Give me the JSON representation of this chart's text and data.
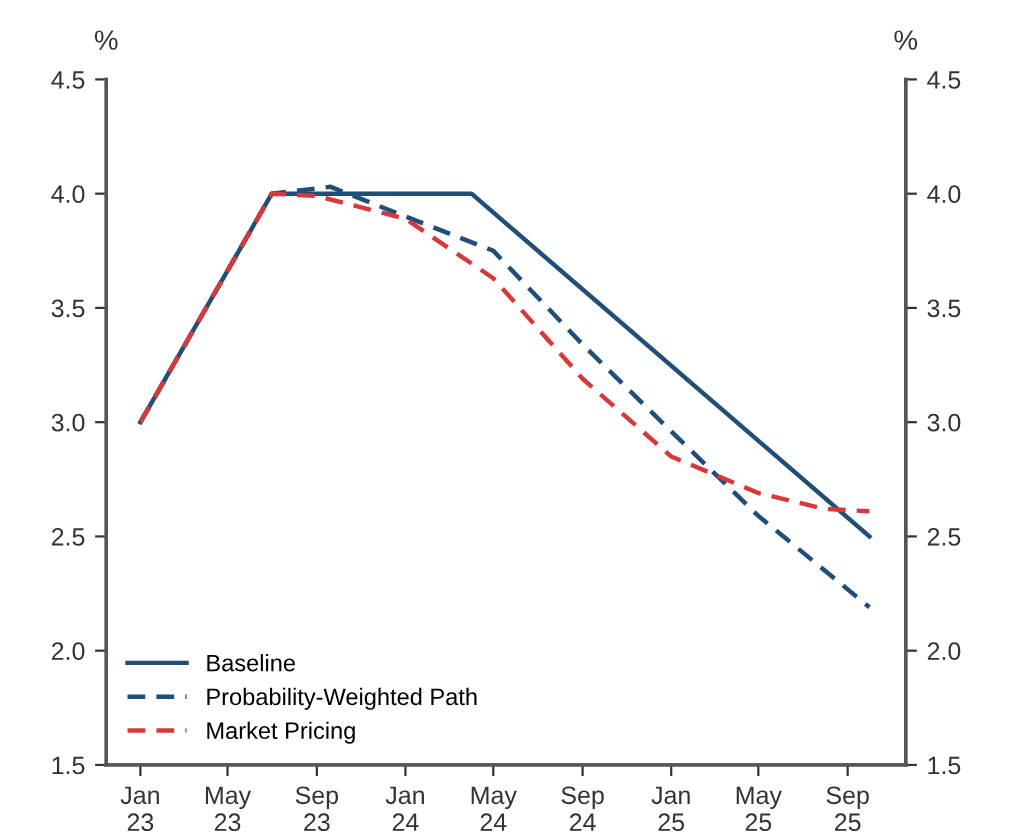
{
  "chart_data": {
    "type": "line",
    "ylabel": "%",
    "y2label": "%",
    "series": [
      {
        "name": "Baseline",
        "color": "#1f4e79",
        "line_style": "solid",
        "x": [
          "2023-01",
          "2023-07",
          "2024-04",
          "2025-10"
        ],
        "values": [
          3.0,
          4.0,
          4.0,
          2.5
        ]
      },
      {
        "name": "Probability-Weighted Path",
        "color": "#1f4e79",
        "line_style": "dashed",
        "x": [
          "2023-01",
          "2023-07",
          "2023-09-20",
          "2024-01",
          "2024-05",
          "2024-09",
          "2025-01",
          "2025-05",
          "2025-10"
        ],
        "values": [
          3.0,
          4.0,
          4.03,
          3.9,
          3.75,
          3.34,
          2.96,
          2.59,
          2.19
        ]
      },
      {
        "name": "Market Pricing",
        "color": "#d9383a",
        "line_style": "dashed",
        "x": [
          "2023-01",
          "2023-07",
          "2023-09",
          "2024-01",
          "2024-05",
          "2024-09",
          "2025-01",
          "2025-05",
          "2025-08",
          "2025-10"
        ],
        "values": [
          3.0,
          4.0,
          3.99,
          3.89,
          3.63,
          3.19,
          2.85,
          2.69,
          2.62,
          2.61
        ]
      }
    ],
    "xlim": [
      "2022-11-15",
      "2025-11-20"
    ],
    "xticks": [
      {
        "value": "2023-01",
        "label": "Jan\n23"
      },
      {
        "value": "2023-05",
        "label": "May\n23"
      },
      {
        "value": "2023-09",
        "label": "Sep\n23"
      },
      {
        "value": "2024-01",
        "label": "Jan\n24"
      },
      {
        "value": "2024-05",
        "label": "May\n24"
      },
      {
        "value": "2024-09",
        "label": "Sep\n24"
      },
      {
        "value": "2025-01",
        "label": "Jan\n25"
      },
      {
        "value": "2025-05",
        "label": "May\n25"
      },
      {
        "value": "2025-09",
        "label": "Sep\n25"
      }
    ],
    "ylim": [
      1.5,
      4.5
    ],
    "yticks": [
      {
        "value": 1.5,
        "label": "1.5"
      },
      {
        "value": 2.0,
        "label": "2.0"
      },
      {
        "value": 2.5,
        "label": "2.5"
      },
      {
        "value": 3.0,
        "label": "3.0"
      },
      {
        "value": 3.5,
        "label": "3.5"
      },
      {
        "value": 4.0,
        "label": "4.0"
      },
      {
        "value": 4.5,
        "label": "4.5"
      }
    ],
    "y2lim": [
      1.5,
      4.5
    ],
    "y2ticks": [
      {
        "value": 1.5,
        "label": "1.5"
      },
      {
        "value": 2.0,
        "label": "2.0"
      },
      {
        "value": 2.5,
        "label": "2.5"
      },
      {
        "value": 3.0,
        "label": "3.0"
      },
      {
        "value": 3.5,
        "label": "3.5"
      },
      {
        "value": 4.0,
        "label": "4.0"
      },
      {
        "value": 4.5,
        "label": "4.5"
      }
    ],
    "grid": false,
    "legend": "bottom left"
  }
}
